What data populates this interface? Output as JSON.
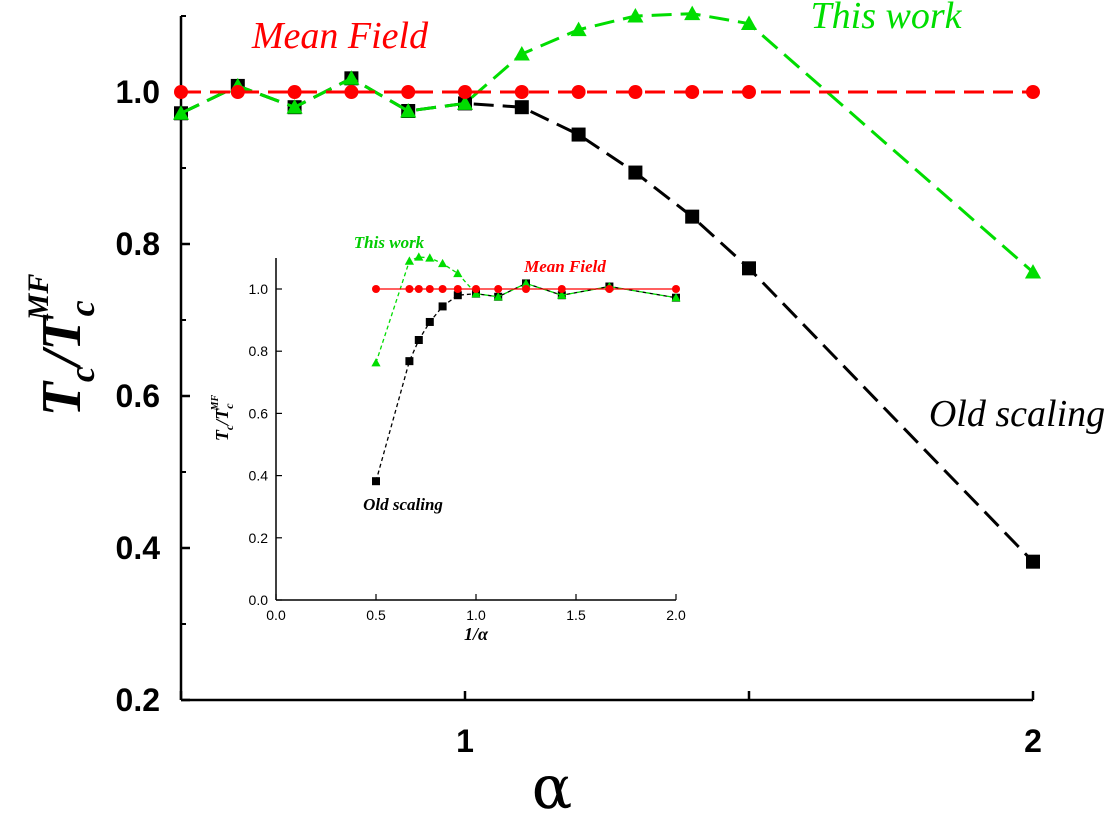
{
  "chart_data": [
    {
      "type": "line",
      "role": "main",
      "xlabel": "α",
      "ylabel": "T_c/T_c^MF",
      "ylabel_parts": {
        "base": "T",
        "sub1": "c",
        "slash": "/",
        "base2": "T",
        "sub2": "c",
        "sup2": "MF"
      },
      "xlim": [
        0.5,
        2.0
      ],
      "ylim": [
        0.2,
        1.1
      ],
      "xticks": [
        1,
        2
      ],
      "xtick_labels": [
        "1",
        "2"
      ],
      "yticks": [
        0.2,
        0.4,
        0.6,
        0.8,
        1.0
      ],
      "ytick_labels": [
        "0.2",
        "0.4",
        "0.6",
        "0.8",
        "1.0"
      ],
      "grid": false,
      "annotations": [
        "Mean Field",
        "This work",
        "Old scaling"
      ],
      "series": [
        {
          "name": "Mean Field",
          "color": "#ff0000",
          "marker": "circle",
          "line": "dashed",
          "x": [
            0.5,
            0.6,
            0.7,
            0.8,
            0.9,
            1.0,
            1.1,
            1.2,
            1.3,
            1.4,
            1.5,
            2.0
          ],
          "y": [
            1.0,
            1.0,
            1.0,
            1.0,
            1.0,
            1.0,
            1.0,
            1.0,
            1.0,
            1.0,
            1.0,
            1.0
          ]
        },
        {
          "name": "This work",
          "color": "#00dd00",
          "marker": "triangle",
          "line": "dashed",
          "x": [
            0.5,
            0.6,
            0.7,
            0.8,
            0.9,
            1.0,
            1.1,
            1.2,
            1.3,
            1.4,
            1.5,
            2.0
          ],
          "y": [
            0.972,
            1.008,
            0.98,
            1.018,
            0.975,
            0.985,
            1.05,
            1.082,
            1.1,
            1.103,
            1.09,
            0.763
          ]
        },
        {
          "name": "Old scaling",
          "color": "#000000",
          "marker": "square",
          "line": "dashed",
          "x": [
            0.5,
            0.6,
            0.7,
            0.8,
            0.9,
            1.0,
            1.1,
            1.2,
            1.3,
            1.4,
            1.5,
            2.0
          ],
          "y": [
            0.972,
            1.008,
            0.98,
            1.018,
            0.975,
            0.985,
            0.98,
            0.944,
            0.894,
            0.836,
            0.768,
            0.382
          ]
        }
      ]
    },
    {
      "type": "line",
      "role": "inset",
      "xlabel": "1/α",
      "ylabel": "T_c/T_c^MF",
      "ylabel_parts": {
        "base": "T",
        "sub1": "c",
        "slash": "/",
        "base2": "T",
        "sub2": "c",
        "sup2": "MF"
      },
      "xlim": [
        0.0,
        2.0
      ],
      "ylim": [
        0.0,
        1.1
      ],
      "xticks": [
        0.0,
        0.5,
        1.0,
        1.5,
        2.0
      ],
      "xtick_labels": [
        "0.0",
        "0.5",
        "1.0",
        "1.5",
        "2.0"
      ],
      "yticks": [
        0.0,
        0.2,
        0.4,
        0.6,
        0.8,
        1.0
      ],
      "ytick_labels": [
        "0.0",
        "0.2",
        "0.4",
        "0.6",
        "0.8",
        "1.0"
      ],
      "grid": false,
      "annotations": [
        "This work",
        "Mean Field",
        "Old scaling"
      ],
      "series": [
        {
          "name": "Mean Field",
          "color": "#ff0000",
          "marker": "circle",
          "line": "solid",
          "x": [
            0.5,
            0.667,
            0.714,
            0.769,
            0.833,
            0.909,
            1.0,
            1.111,
            1.25,
            1.429,
            1.667,
            2.0
          ],
          "y": [
            1.0,
            1.0,
            1.0,
            1.0,
            1.0,
            1.0,
            1.0,
            1.0,
            1.0,
            1.0,
            1.0,
            1.0
          ]
        },
        {
          "name": "This work",
          "color": "#00dd00",
          "marker": "triangle",
          "line": "dashed",
          "x": [
            0.5,
            0.667,
            0.714,
            0.769,
            0.833,
            0.909,
            1.0,
            1.111,
            1.25,
            1.429,
            1.667,
            2.0
          ],
          "y": [
            0.763,
            1.09,
            1.103,
            1.1,
            1.082,
            1.05,
            0.985,
            0.975,
            1.018,
            0.98,
            1.008,
            0.972
          ]
        },
        {
          "name": "Old scaling",
          "color": "#000000",
          "marker": "square",
          "line": "dashed",
          "x": [
            0.5,
            0.667,
            0.714,
            0.769,
            0.833,
            0.909,
            1.0,
            1.111,
            1.25,
            1.429,
            1.667,
            2.0
          ],
          "y": [
            0.382,
            0.768,
            0.836,
            0.894,
            0.944,
            0.98,
            0.985,
            0.975,
            1.018,
            0.98,
            1.008,
            0.972
          ]
        }
      ]
    }
  ]
}
